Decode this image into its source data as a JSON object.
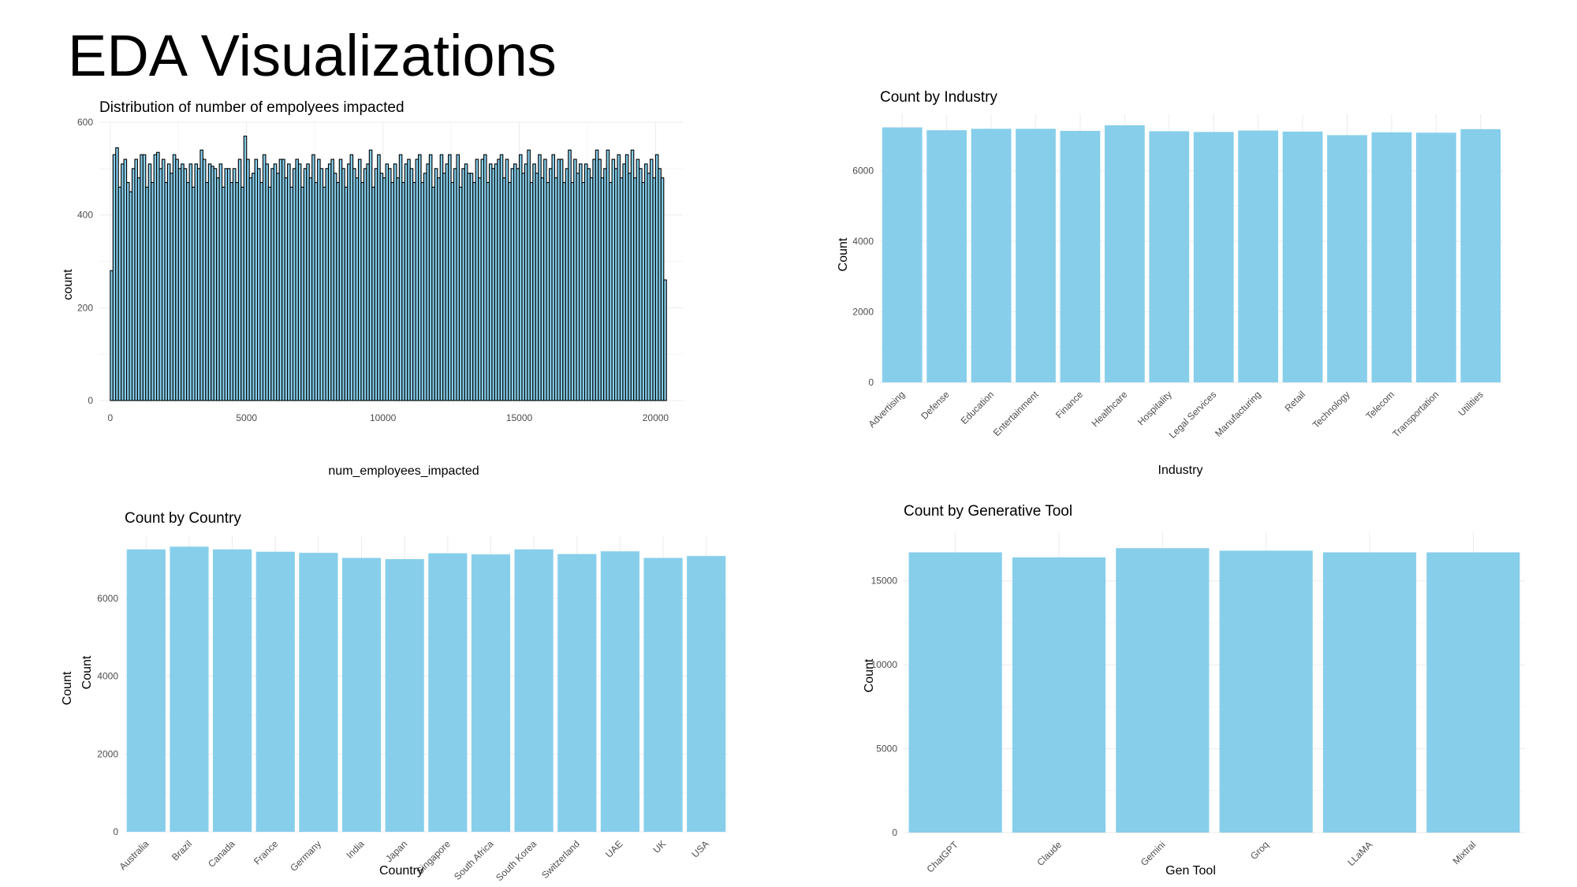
{
  "page": {
    "title": "EDA Visualizations"
  },
  "chart_data": [
    {
      "id": "employees",
      "type": "bar",
      "title": "Distribution of number of empolyees impacted",
      "xlabel": "num_employees_impacted",
      "ylabel": "count",
      "xlim": [
        -400,
        21000
      ],
      "ylim": [
        0,
        600
      ],
      "x_ticks": [
        0,
        5000,
        10000,
        15000,
        20000
      ],
      "y_ticks": [
        0,
        200,
        400,
        600
      ],
      "bin_start": 0,
      "bin_width": 100,
      "values": [
        280,
        530,
        545,
        460,
        510,
        520,
        470,
        450,
        500,
        520,
        480,
        530,
        530,
        460,
        510,
        470,
        530,
        535,
        500,
        520,
        470,
        510,
        490,
        530,
        520,
        500,
        510,
        500,
        470,
        510,
        460,
        510,
        500,
        540,
        520,
        470,
        510,
        505,
        500,
        480,
        510,
        460,
        500,
        500,
        470,
        500,
        470,
        520,
        460,
        570,
        520,
        480,
        490,
        520,
        500,
        470,
        530,
        510,
        460,
        500,
        510,
        490,
        520,
        520,
        480,
        510,
        460,
        500,
        520,
        510,
        460,
        500,
        510,
        480,
        530,
        470,
        520,
        500,
        460,
        500,
        510,
        520,
        490,
        470,
        520,
        500,
        460,
        510,
        530,
        500,
        480,
        520,
        470,
        500,
        510,
        540,
        460,
        500,
        530,
        490,
        480,
        510,
        500,
        470,
        510,
        480,
        530,
        470,
        510,
        520,
        500,
        470,
        520,
        530,
        470,
        490,
        510,
        530,
        460,
        500,
        480,
        530,
        490,
        510,
        530,
        470,
        500,
        530,
        460,
        500,
        510,
        490,
        490,
        470,
        520,
        480,
        520,
        530,
        470,
        510,
        500,
        510,
        520,
        530,
        480,
        520,
        470,
        500,
        510,
        500,
        530,
        490,
        510,
        540,
        470,
        510,
        490,
        530,
        480,
        520,
        470,
        500,
        530,
        480,
        520,
        520,
        470,
        500,
        540,
        470,
        520,
        490,
        510,
        470,
        510,
        500,
        480,
        520,
        540,
        520,
        480,
        500,
        540,
        470,
        520,
        500,
        530,
        480,
        510,
        530,
        490,
        540,
        480,
        520,
        500,
        470,
        510,
        490,
        520,
        480,
        530,
        500,
        480,
        260
      ]
    },
    {
      "id": "industry",
      "type": "bar",
      "title": "Count by Industry",
      "xlabel": "Industry",
      "ylabel": "Count",
      "ylim": [
        0,
        7600
      ],
      "y_ticks": [
        0,
        2000,
        4000,
        6000
      ],
      "color": "#87CEEB",
      "categories": [
        "Advertising",
        "Defense",
        "Education",
        "Entertainment",
        "Finance",
        "Healthcare",
        "Hospitality",
        "Legal Services",
        "Manufacturing",
        "Retail",
        "Technology",
        "Telecom",
        "Transportation",
        "Utilities"
      ],
      "values": [
        7230,
        7150,
        7190,
        7190,
        7130,
        7290,
        7120,
        7100,
        7140,
        7110,
        7010,
        7090,
        7080,
        7180
      ]
    },
    {
      "id": "country",
      "type": "bar",
      "title": "Count by Country",
      "xlabel": "Country",
      "ylabel": "Count",
      "ylabel_secondary": "Count",
      "ylim": [
        0,
        7600
      ],
      "y_ticks": [
        0,
        2000,
        4000,
        6000
      ],
      "color": "#87CEEB",
      "categories": [
        "Australia",
        "Brazil",
        "Canada",
        "France",
        "Germany",
        "India",
        "Japan",
        "Singapore",
        "South Africa",
        "South Korea",
        "Switzerland",
        "UAE",
        "UK",
        "USA"
      ],
      "values": [
        7260,
        7330,
        7260,
        7200,
        7170,
        7040,
        7010,
        7160,
        7130,
        7260,
        7140,
        7210,
        7040,
        7090
      ]
    },
    {
      "id": "gentool",
      "type": "bar",
      "title": "Count by Generative Tool",
      "xlabel": "Gen Tool",
      "ylabel": "Count",
      "ylim": [
        0,
        17900
      ],
      "y_ticks": [
        0,
        5000,
        10000,
        15000
      ],
      "color": "#87CEEB",
      "categories": [
        "ChatGPT",
        "Claude",
        "Gemini",
        "Groq",
        "LLaMA",
        "Mixtral"
      ],
      "values": [
        16700,
        16400,
        16950,
        16800,
        16700,
        16700
      ]
    }
  ]
}
